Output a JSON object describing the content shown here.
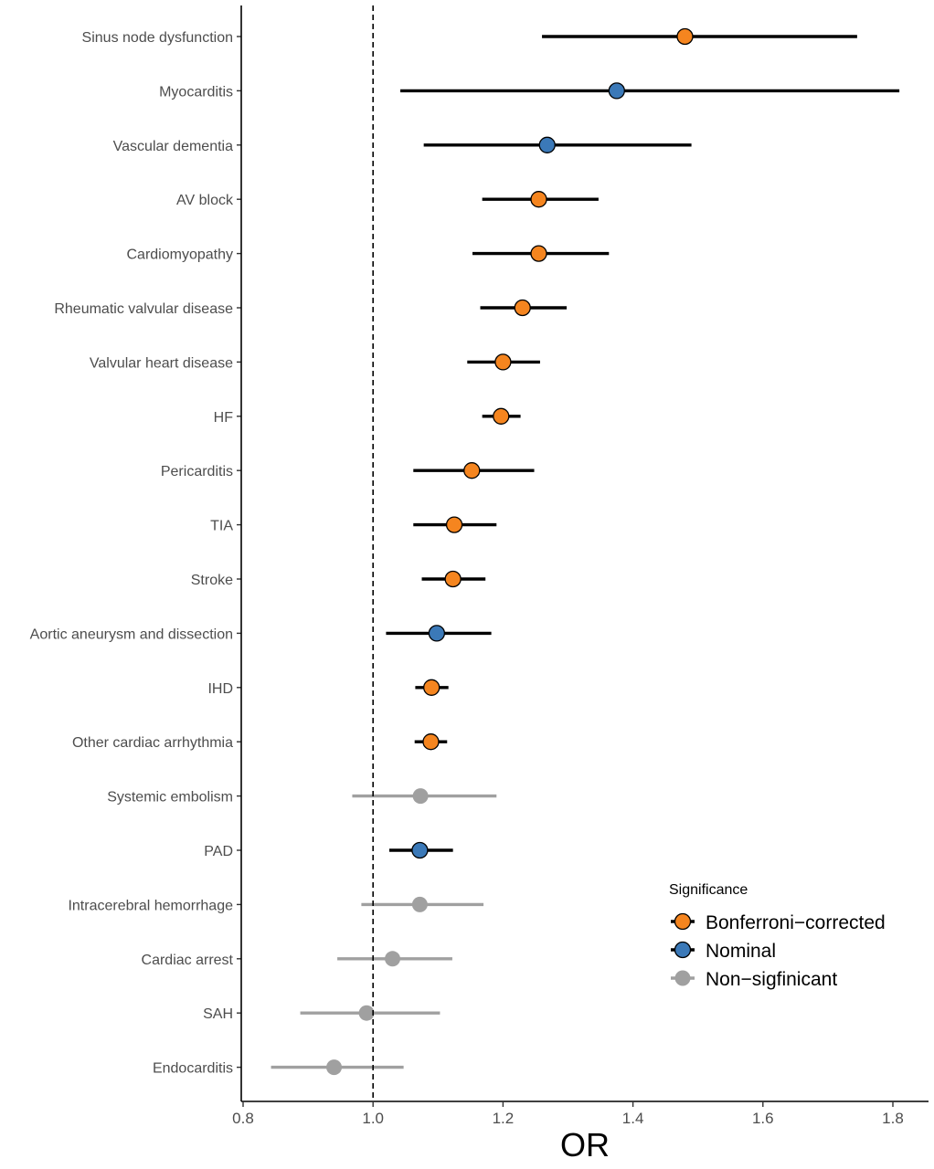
{
  "chart_data": {
    "type": "forest",
    "xlabel": "OR",
    "ylabel": "",
    "xlim": [
      0.8,
      1.82
    ],
    "xticks": [
      0.8,
      1.0,
      1.2,
      1.4,
      1.6,
      1.8
    ],
    "xtick_labels": [
      "0.8",
      "1.0",
      "1.2",
      "1.4",
      "1.6",
      "1.8"
    ],
    "reference_line": 1.0,
    "grid": false,
    "legend": {
      "title": "Significance",
      "position": "bottom-right",
      "entries": [
        {
          "key": "bonferroni",
          "label": "Bonferroni−corrected",
          "color": "#F5851F"
        },
        {
          "key": "nominal",
          "label": "Nominal",
          "color": "#3B79B8"
        },
        {
          "key": "nonsig",
          "label": "Non−sigfinicant",
          "color": "#A0A0A0"
        }
      ]
    },
    "rows": [
      {
        "label": "Sinus node dysfunction",
        "or": 1.48,
        "lo": 1.26,
        "hi": 1.745,
        "sig": "bonferroni"
      },
      {
        "label": "Myocarditis",
        "or": 1.375,
        "lo": 1.042,
        "hi": 1.81,
        "sig": "nominal"
      },
      {
        "label": "Vascular dementia",
        "or": 1.268,
        "lo": 1.078,
        "hi": 1.49,
        "sig": "nominal"
      },
      {
        "label": "AV block",
        "or": 1.255,
        "lo": 1.168,
        "hi": 1.347,
        "sig": "bonferroni"
      },
      {
        "label": "Cardiomyopathy",
        "or": 1.255,
        "lo": 1.153,
        "hi": 1.363,
        "sig": "bonferroni"
      },
      {
        "label": "Rheumatic valvular disease",
        "or": 1.23,
        "lo": 1.165,
        "hi": 1.298,
        "sig": "bonferroni"
      },
      {
        "label": "Valvular heart disease",
        "or": 1.2,
        "lo": 1.145,
        "hi": 1.257,
        "sig": "bonferroni"
      },
      {
        "label": "HF",
        "or": 1.197,
        "lo": 1.168,
        "hi": 1.227,
        "sig": "bonferroni"
      },
      {
        "label": "Pericarditis",
        "or": 1.152,
        "lo": 1.062,
        "hi": 1.248,
        "sig": "bonferroni"
      },
      {
        "label": "TIA",
        "or": 1.125,
        "lo": 1.062,
        "hi": 1.19,
        "sig": "bonferroni"
      },
      {
        "label": "Stroke",
        "or": 1.123,
        "lo": 1.075,
        "hi": 1.173,
        "sig": "bonferroni"
      },
      {
        "label": "Aortic aneurysm and dissection",
        "or": 1.098,
        "lo": 1.02,
        "hi": 1.182,
        "sig": "nominal"
      },
      {
        "label": "IHD",
        "or": 1.09,
        "lo": 1.065,
        "hi": 1.116,
        "sig": "bonferroni"
      },
      {
        "label": "Other cardiac arrhythmia",
        "or": 1.089,
        "lo": 1.064,
        "hi": 1.114,
        "sig": "bonferroni"
      },
      {
        "label": "Systemic embolism",
        "or": 1.073,
        "lo": 0.968,
        "hi": 1.19,
        "sig": "nonsig"
      },
      {
        "label": "PAD",
        "or": 1.072,
        "lo": 1.025,
        "hi": 1.123,
        "sig": "nominal"
      },
      {
        "label": "Intracerebral hemorrhage",
        "or": 1.072,
        "lo": 0.982,
        "hi": 1.17,
        "sig": "nonsig"
      },
      {
        "label": "Cardiac arrest",
        "or": 1.03,
        "lo": 0.945,
        "hi": 1.122,
        "sig": "nonsig"
      },
      {
        "label": "SAH",
        "or": 0.99,
        "lo": 0.888,
        "hi": 1.103,
        "sig": "nonsig"
      },
      {
        "label": "Endocarditis",
        "or": 0.94,
        "lo": 0.843,
        "hi": 1.047,
        "sig": "nonsig"
      }
    ]
  }
}
